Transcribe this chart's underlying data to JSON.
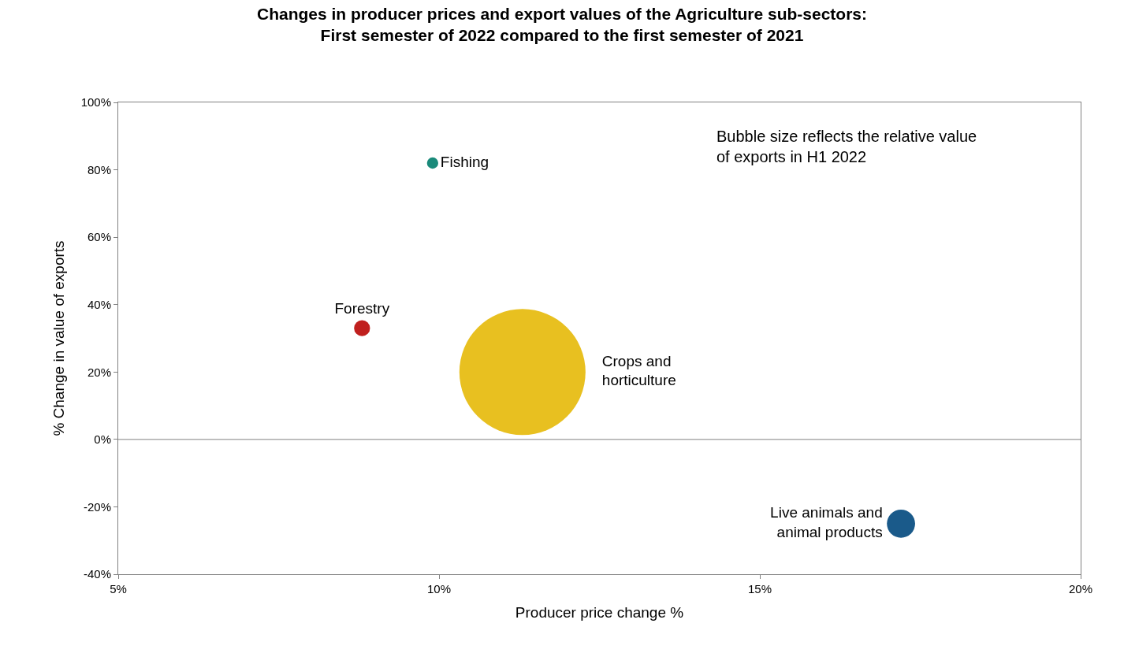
{
  "chart_data": {
    "type": "bubble",
    "title": "Changes in producer prices and export values of the Agriculture sub-sectors:\nFirst semester of 2022 compared to the first semester of 2021",
    "xlabel": "Producer price change %",
    "ylabel": "% Change in value of exports",
    "series": [
      {
        "name": "Fishing",
        "color": "#1a8a7a",
        "x": [
          9.9
        ],
        "values": [
          82
        ],
        "sizes": [
          0.008
        ]
      },
      {
        "name": "Forestry",
        "color": "#c0201e",
        "x": [
          8.8
        ],
        "values": [
          33
        ],
        "sizes": [
          0.016
        ]
      },
      {
        "name": "Crops and\nhorticulture",
        "color": "#e8c020",
        "x": [
          11.3
        ],
        "values": [
          20
        ],
        "sizes": [
          1
        ]
      },
      {
        "name": "Live animals and\nanimal products",
        "color": "#1a5a8a",
        "x": [
          17.2
        ],
        "values": [
          -25
        ],
        "sizes": [
          0.05
        ]
      }
    ],
    "xlim": [
      5,
      20
    ],
    "xticks": [
      {
        "value": 5,
        "label": "5%"
      },
      {
        "value": 10,
        "label": "10%"
      },
      {
        "value": 15,
        "label": "15%"
      },
      {
        "value": 20,
        "label": "20%"
      }
    ],
    "ylim": [
      -40,
      100
    ],
    "yticks": [
      {
        "value": -40,
        "label": "-40%"
      },
      {
        "value": -20,
        "label": "-20%"
      },
      {
        "value": 0,
        "label": "0%"
      },
      {
        "value": 20,
        "label": "20%"
      },
      {
        "value": 40,
        "label": "40%"
      },
      {
        "value": 60,
        "label": "60%"
      },
      {
        "value": 80,
        "label": "80%"
      },
      {
        "value": 100,
        "label": "100%"
      }
    ],
    "ref_lines": [
      {
        "axis": "y",
        "value": 0,
        "color": "#808080"
      }
    ],
    "annotations": [
      "Bubble size reflects the relative value of exports in H1 2022"
    ],
    "legend": false
  }
}
